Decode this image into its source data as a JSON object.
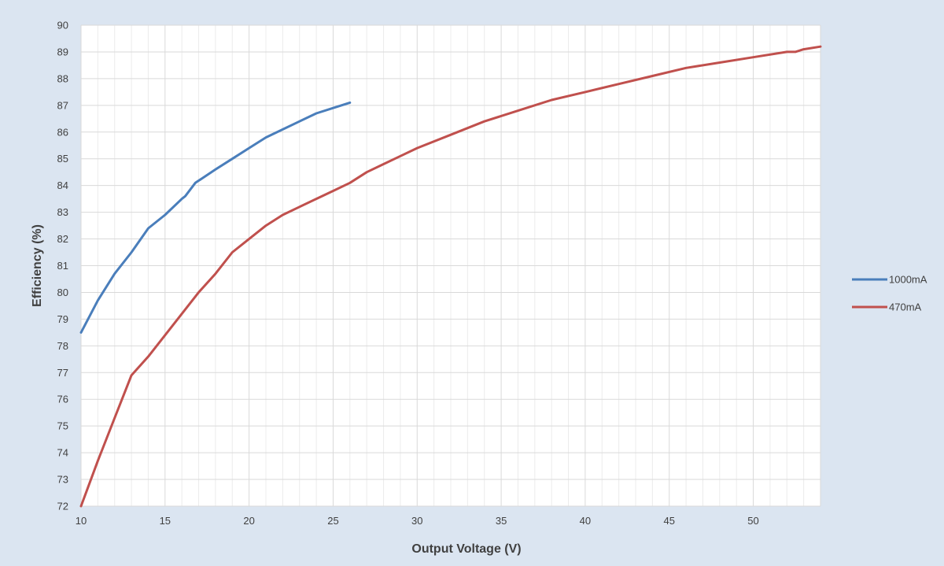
{
  "chart_data": {
    "type": "line",
    "title": "",
    "xlabel": "Output Voltage (V)",
    "ylabel": "Efficiency (%)",
    "xlim": [
      10,
      54
    ],
    "ylim": [
      72,
      90
    ],
    "xticks": [
      10,
      15,
      20,
      25,
      30,
      35,
      40,
      45,
      50
    ],
    "yticks": [
      72,
      73,
      74,
      75,
      76,
      77,
      78,
      79,
      80,
      81,
      82,
      83,
      84,
      85,
      86,
      87,
      88,
      89,
      90
    ],
    "grid": true,
    "legend_position": "right",
    "series": [
      {
        "name": "1000mA",
        "color": "#4a7ebb",
        "x": [
          10,
          11,
          12,
          13,
          14,
          15,
          16,
          16.2,
          16.8,
          18,
          19,
          20,
          21,
          22,
          23,
          24,
          25,
          26
        ],
        "y": [
          78.5,
          79.7,
          80.7,
          81.5,
          82.4,
          82.9,
          83.5,
          83.6,
          84.1,
          84.6,
          85.0,
          85.4,
          85.8,
          86.1,
          86.4,
          86.7,
          86.9,
          87.1
        ]
      },
      {
        "name": "470mA",
        "color": "#c0504d",
        "x": [
          10,
          11,
          12,
          13,
          14,
          15,
          16,
          17,
          18,
          19,
          20,
          21,
          22,
          23,
          24,
          25,
          26,
          27,
          28,
          29,
          30,
          32,
          34,
          36,
          38,
          40,
          42,
          44,
          46,
          48,
          50,
          52,
          52.5,
          53,
          54
        ],
        "y": [
          72.0,
          73.7,
          75.3,
          76.9,
          77.6,
          78.4,
          79.2,
          80.0,
          80.7,
          81.5,
          82.0,
          82.5,
          82.9,
          83.2,
          83.5,
          83.8,
          84.1,
          84.5,
          84.8,
          85.1,
          85.4,
          85.9,
          86.4,
          86.8,
          87.2,
          87.5,
          87.8,
          88.1,
          88.4,
          88.6,
          88.8,
          89.0,
          89.0,
          89.1,
          89.2
        ]
      }
    ]
  }
}
